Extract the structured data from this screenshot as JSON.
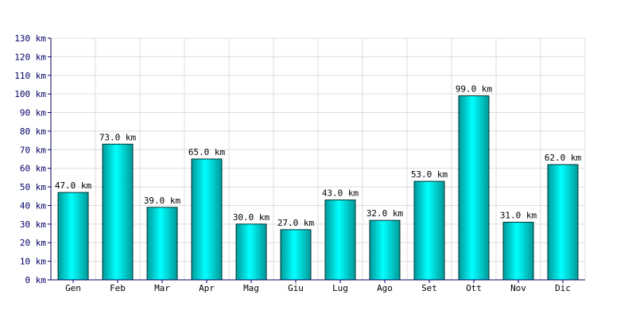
{
  "chart_data": {
    "type": "bar",
    "categories": [
      "Gen",
      "Feb",
      "Mar",
      "Apr",
      "Mag",
      "Giu",
      "Lug",
      "Ago",
      "Set",
      "Ott",
      "Nov",
      "Dic"
    ],
    "values": [
      47.0,
      73.0,
      39.0,
      65.0,
      30.0,
      27.0,
      43.0,
      32.0,
      53.0,
      99.0,
      31.0,
      62.0
    ],
    "data_labels": [
      "47.0 km",
      "73.0 km",
      "39.0 km",
      "65.0 km",
      "30.0 km",
      "27.0 km",
      "43.0 km",
      "32.0 km",
      "53.0 km",
      "99.0 km",
      "31.0 km",
      "62.0 km"
    ],
    "y_ticks": [
      "0 km",
      "10 km",
      "20 km",
      "30 km",
      "40 km",
      "50 km",
      "60 km",
      "70 km",
      "80 km",
      "90 km",
      "100 km",
      "110 km",
      "120 km",
      "130 km"
    ],
    "ylim": [
      0,
      130
    ],
    "y_step": 10,
    "title": "",
    "xlabel": "",
    "ylabel": "",
    "grid": true,
    "legend": "none",
    "colors": {
      "bar_light": "#00ffff",
      "bar_dark": "#009999",
      "bar_stroke": "#003333",
      "grid": "#dddddd",
      "axis": "#000066",
      "y_tick_text": "#000066"
    }
  }
}
